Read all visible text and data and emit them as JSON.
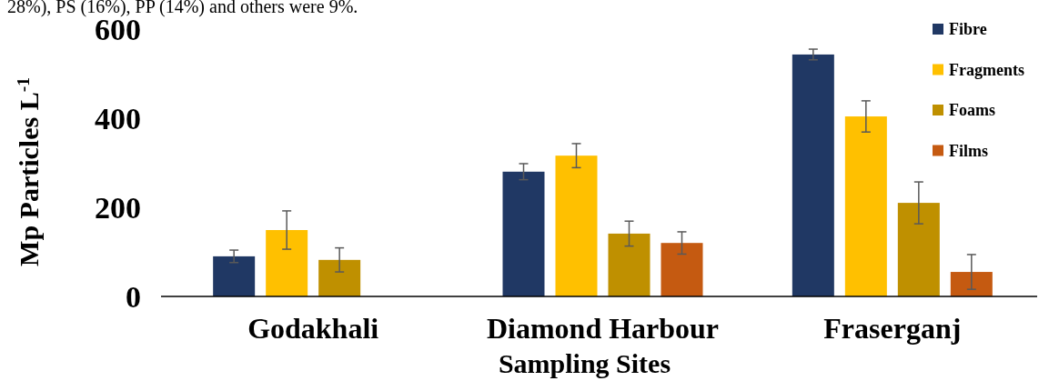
{
  "chart_data": {
    "type": "bar",
    "annotations": [
      "28%), PS (16%), PP (14%) and others were 9%."
    ],
    "xlabel": "Sampling Sites",
    "ylabel": "Mp Particles L$^{-1}$",
    "categories": [
      "Godakhali",
      "Diamond Harbour",
      "Fraserganj"
    ],
    "series": [
      {
        "name": "Fibre",
        "color": "#203864",
        "values": [
          90,
          280,
          543
        ],
        "errors": [
          14,
          18,
          12
        ]
      },
      {
        "name": "Fragments",
        "color": "#ffc000",
        "values": [
          149,
          316,
          404
        ],
        "errors": [
          43,
          27,
          35
        ]
      },
      {
        "name": "Foams",
        "color": "#bf9000",
        "values": [
          82,
          141,
          210
        ],
        "errors": [
          27,
          28,
          47
        ]
      },
      {
        "name": "Films",
        "color": "#c55a11",
        "values": [
          0,
          120,
          55
        ],
        "errors": [
          null,
          25,
          39
        ]
      }
    ],
    "ylim": [
      0,
      600
    ],
    "yticks": [
      0,
      200,
      400,
      600
    ],
    "legend": "top right"
  }
}
